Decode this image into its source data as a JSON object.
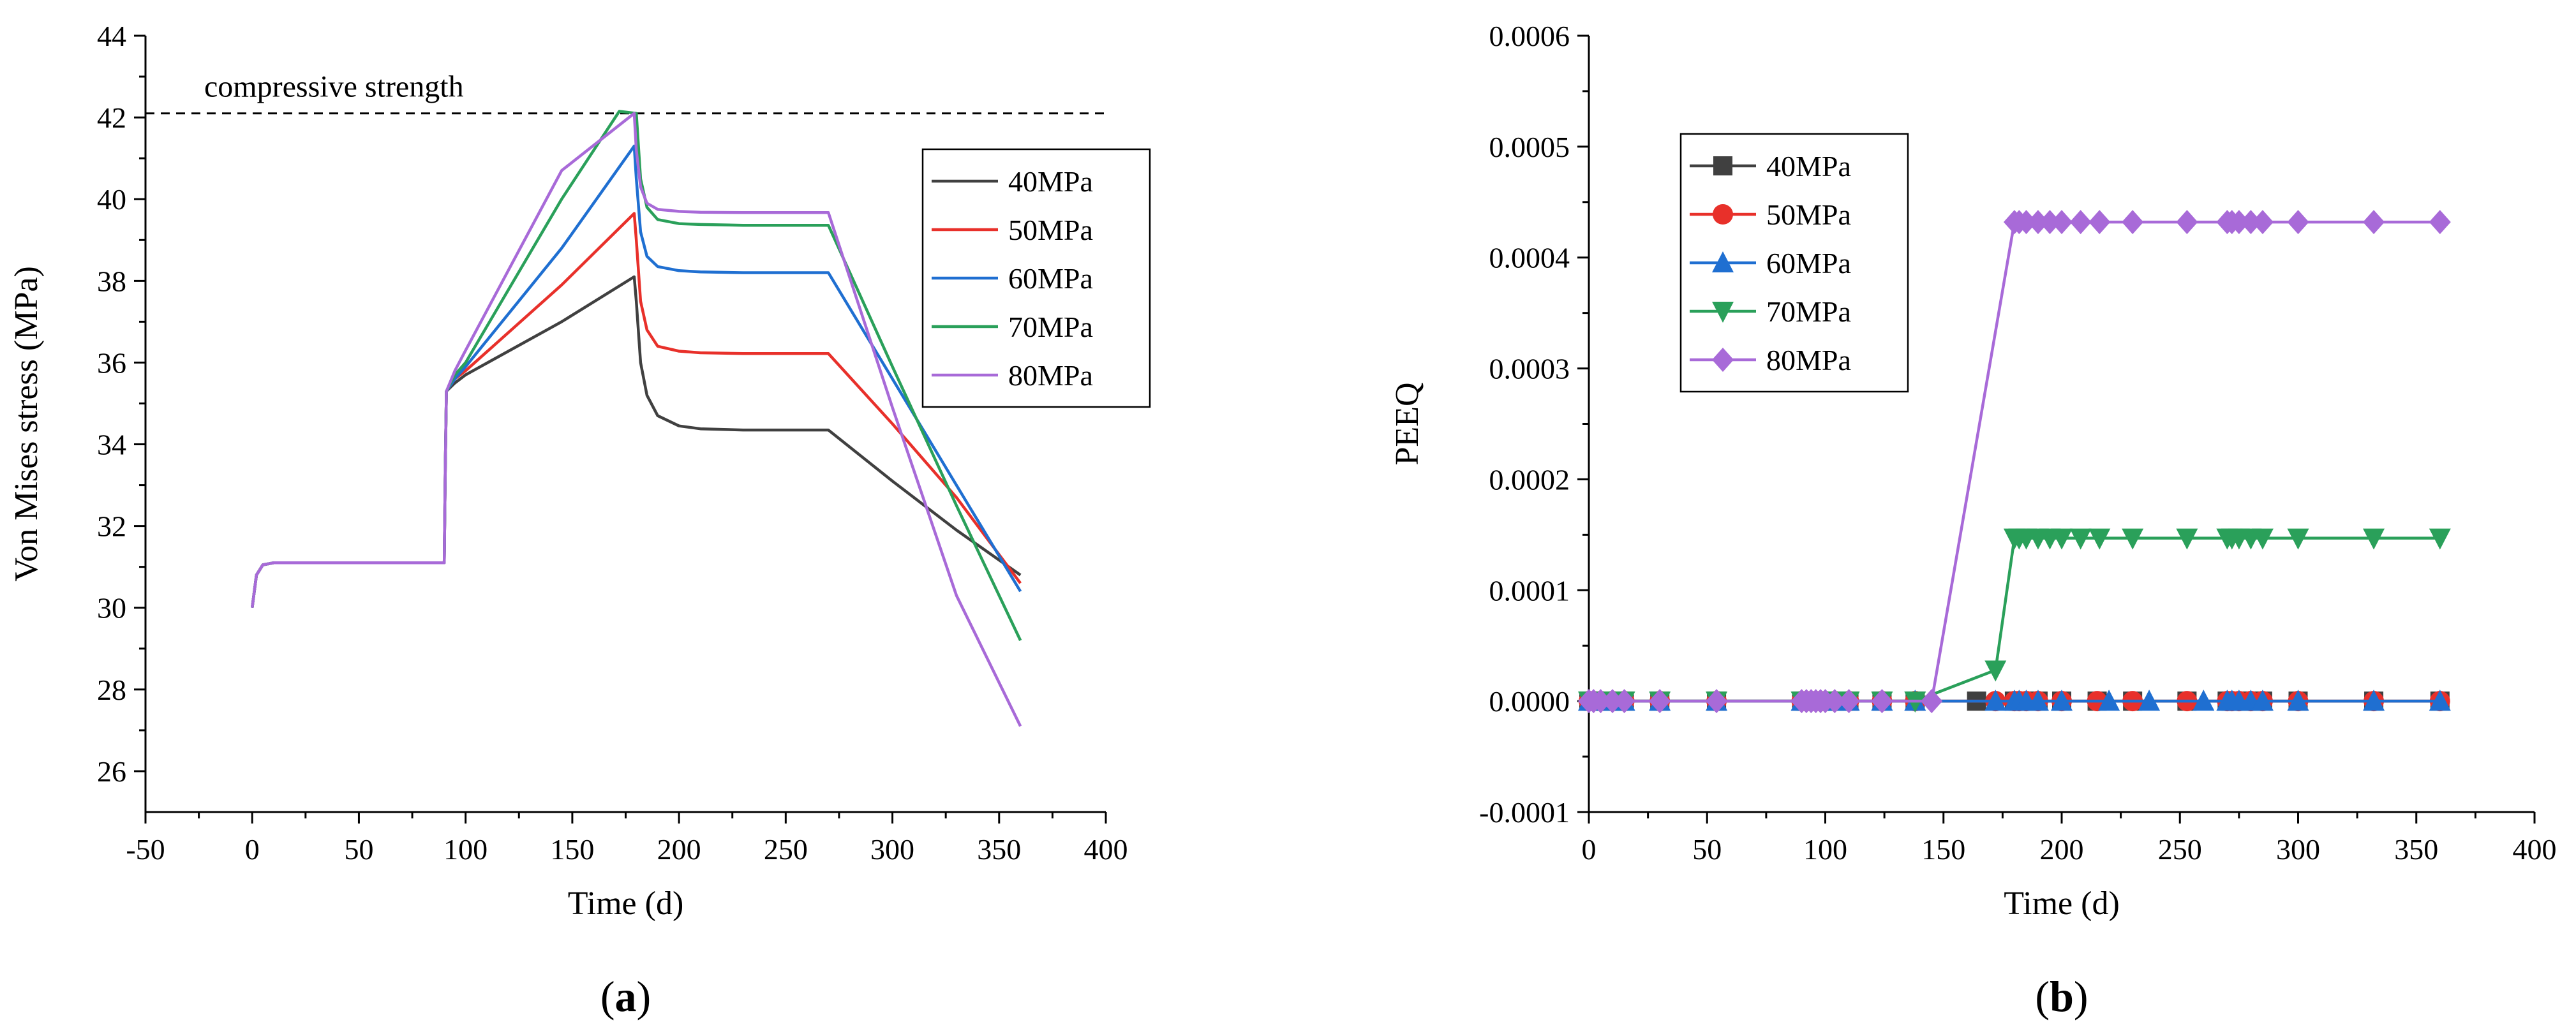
{
  "chart_data": [
    {
      "type": "line",
      "xlabel": "Time (d)",
      "ylabel": "Von Mises stress (MPa)",
      "xlim": [
        -50,
        400
      ],
      "ylim": [
        25,
        44
      ],
      "xticks": [
        -50,
        0,
        50,
        100,
        150,
        200,
        250,
        300,
        350,
        400
      ],
      "yticks": [
        26,
        28,
        30,
        32,
        34,
        36,
        38,
        40,
        42,
        44
      ],
      "grid": false,
      "legend": "top-right",
      "reference_line": {
        "y": 42.1,
        "label": "compressive strength"
      },
      "caption_prefix": "(",
      "caption_letter": "a",
      "caption_suffix": ")",
      "series": [
        {
          "name": "40MPa",
          "color": "#404040",
          "x": [
            0,
            2,
            5,
            10,
            90,
            90.5,
            91,
            95,
            100,
            145,
            179,
            180,
            182,
            185,
            190,
            200,
            210,
            230,
            270,
            300,
            330,
            360
          ],
          "y": [
            30.0,
            30.8,
            31.05,
            31.1,
            31.1,
            33.5,
            35.3,
            35.5,
            35.7,
            37.0,
            38.1,
            37.5,
            36.0,
            35.2,
            34.7,
            34.45,
            34.38,
            34.35,
            34.35,
            33.1,
            31.9,
            30.8
          ]
        },
        {
          "name": "50MPa",
          "color": "#e8302a",
          "x": [
            0,
            2,
            5,
            10,
            90,
            90.5,
            91,
            95,
            100,
            145,
            179,
            180,
            182,
            185,
            190,
            200,
            210,
            230,
            270,
            300,
            330,
            360
          ],
          "y": [
            30.0,
            30.8,
            31.05,
            31.1,
            31.1,
            33.5,
            35.3,
            35.6,
            35.8,
            37.9,
            39.65,
            39.0,
            37.5,
            36.8,
            36.4,
            36.28,
            36.24,
            36.22,
            36.22,
            34.5,
            32.7,
            30.6
          ]
        },
        {
          "name": "60MPa",
          "color": "#1f6fd1",
          "x": [
            0,
            2,
            5,
            10,
            90,
            90.5,
            91,
            95,
            100,
            145,
            179,
            180,
            182,
            185,
            190,
            200,
            210,
            230,
            270,
            300,
            330,
            360
          ],
          "y": [
            30.0,
            30.8,
            31.05,
            31.1,
            31.1,
            33.5,
            35.3,
            35.6,
            35.9,
            38.8,
            41.3,
            40.5,
            39.2,
            38.6,
            38.35,
            38.25,
            38.22,
            38.2,
            38.2,
            35.6,
            33.0,
            30.4
          ]
        },
        {
          "name": "70MPa",
          "color": "#2aa05a",
          "x": [
            0,
            2,
            5,
            10,
            90,
            90.5,
            91,
            95,
            100,
            145,
            172,
            180,
            182,
            185,
            190,
            200,
            210,
            230,
            270,
            300,
            330,
            360
          ],
          "y": [
            30.0,
            30.8,
            31.05,
            31.1,
            31.1,
            33.5,
            35.3,
            35.7,
            36.0,
            40.0,
            42.15,
            42.1,
            40.5,
            39.8,
            39.5,
            39.4,
            39.38,
            39.36,
            39.36,
            35.9,
            32.5,
            29.2
          ]
        },
        {
          "name": "80MPa",
          "color": "#a86ad8",
          "x": [
            0,
            2,
            5,
            10,
            90,
            90.5,
            91,
            95,
            100,
            145,
            179,
            180,
            182,
            185,
            190,
            200,
            210,
            230,
            270,
            300,
            330,
            360
          ],
          "y": [
            30.0,
            30.8,
            31.05,
            31.1,
            31.1,
            33.5,
            35.3,
            35.8,
            36.3,
            40.7,
            42.1,
            41.2,
            40.3,
            39.9,
            39.75,
            39.7,
            39.68,
            39.67,
            39.67,
            34.9,
            30.3,
            27.1
          ]
        }
      ]
    },
    {
      "type": "line",
      "xlabel": "Time (d)",
      "ylabel": "PEEQ",
      "xlim": [
        0,
        400
      ],
      "ylim": [
        -0.0001,
        0.0006
      ],
      "xticks": [
        0,
        50,
        100,
        150,
        200,
        250,
        300,
        350,
        400
      ],
      "yticks": [
        -0.0001,
        0.0,
        0.0001,
        0.0002,
        0.0003,
        0.0004,
        0.0005,
        0.0006
      ],
      "ytick_labels": [
        "-0.0001",
        "0.0000",
        "0.0001",
        "0.0002",
        "0.0003",
        "0.0004",
        "0.0005",
        "0.0006"
      ],
      "grid": false,
      "legend": "top-left",
      "caption_prefix": "(",
      "caption_letter": "b",
      "caption_suffix": ")",
      "series": [
        {
          "name": "40MPa",
          "color": "#404040",
          "marker": "square",
          "x": [
            0,
            2,
            5,
            10,
            15,
            30,
            54,
            90,
            92,
            94,
            96,
            98,
            100,
            104,
            110,
            124,
            138,
            164,
            180,
            182,
            185,
            190,
            200,
            215,
            230,
            253,
            270,
            272,
            275,
            280,
            285,
            300,
            332,
            360
          ],
          "y": [
            0,
            0,
            0,
            0,
            0,
            0,
            0,
            0,
            0,
            0,
            0,
            0,
            0,
            0,
            0,
            0,
            0,
            0,
            0,
            0,
            0,
            0,
            0,
            0,
            0,
            0,
            0,
            0,
            0,
            0,
            0,
            0,
            0,
            0
          ]
        },
        {
          "name": "50MPa",
          "color": "#e8302a",
          "marker": "circle",
          "x": [
            0,
            2,
            5,
            10,
            15,
            30,
            54,
            90,
            92,
            94,
            96,
            98,
            100,
            104,
            110,
            124,
            138,
            172,
            180,
            182,
            185,
            190,
            200,
            215,
            230,
            253,
            270,
            272,
            275,
            280,
            285,
            300,
            332,
            360
          ],
          "y": [
            0,
            0,
            0,
            0,
            0,
            0,
            0,
            0,
            0,
            0,
            0,
            0,
            0,
            0,
            0,
            0,
            0,
            0,
            0,
            0,
            0,
            0,
            0,
            0,
            0,
            0,
            0,
            0,
            0,
            0,
            0,
            0,
            0,
            0
          ]
        },
        {
          "name": "60MPa",
          "color": "#1f6fd1",
          "marker": "triangle-up",
          "x": [
            0,
            2,
            5,
            10,
            15,
            30,
            54,
            90,
            92,
            94,
            96,
            98,
            100,
            104,
            110,
            124,
            138,
            172,
            180,
            182,
            185,
            190,
            200,
            220,
            237,
            260,
            270,
            272,
            275,
            280,
            285,
            300,
            332,
            360
          ],
          "y": [
            0,
            0,
            0,
            0,
            0,
            0,
            0,
            0,
            0,
            0,
            0,
            0,
            0,
            0,
            0,
            0,
            0,
            0,
            0,
            0,
            0,
            0,
            0,
            0,
            0,
            0,
            0,
            0,
            0,
            0,
            0,
            0,
            0,
            0
          ]
        },
        {
          "name": "70MPa",
          "color": "#2aa05a",
          "marker": "triangle-down",
          "x": [
            0,
            2,
            5,
            10,
            15,
            30,
            54,
            90,
            92,
            94,
            96,
            98,
            100,
            104,
            110,
            124,
            138,
            172,
            180,
            182,
            185,
            190,
            195,
            200,
            208,
            216,
            230,
            253,
            270,
            272,
            275,
            280,
            285,
            300,
            332,
            360
          ],
          "y": [
            0,
            0,
            0,
            0,
            0,
            0,
            0,
            0,
            0,
            0,
            0,
            0,
            0,
            0,
            0,
            0,
            0,
            2.8e-05,
            0.000147,
            0.000147,
            0.000147,
            0.000147,
            0.000147,
            0.000147,
            0.000147,
            0.000147,
            0.000147,
            0.000147,
            0.000147,
            0.000147,
            0.000147,
            0.000147,
            0.000147,
            0.000147,
            0.000147,
            0.000147
          ]
        },
        {
          "name": "80MPa",
          "color": "#a86ad8",
          "marker": "diamond",
          "x": [
            0,
            2,
            5,
            10,
            15,
            30,
            54,
            90,
            92,
            94,
            96,
            98,
            100,
            104,
            110,
            124,
            145,
            180,
            182,
            185,
            190,
            195,
            200,
            208,
            216,
            230,
            253,
            270,
            272,
            275,
            280,
            285,
            300,
            332,
            360
          ],
          "y": [
            0,
            0,
            0,
            0,
            0,
            0,
            0,
            0,
            0,
            0,
            0,
            0,
            0,
            0,
            0,
            0,
            0,
            0.000432,
            0.000432,
            0.000432,
            0.000432,
            0.000432,
            0.000432,
            0.000432,
            0.000432,
            0.000432,
            0.000432,
            0.000432,
            0.000432,
            0.000432,
            0.000432,
            0.000432,
            0.000432,
            0.000432,
            0.000432
          ]
        }
      ]
    }
  ]
}
